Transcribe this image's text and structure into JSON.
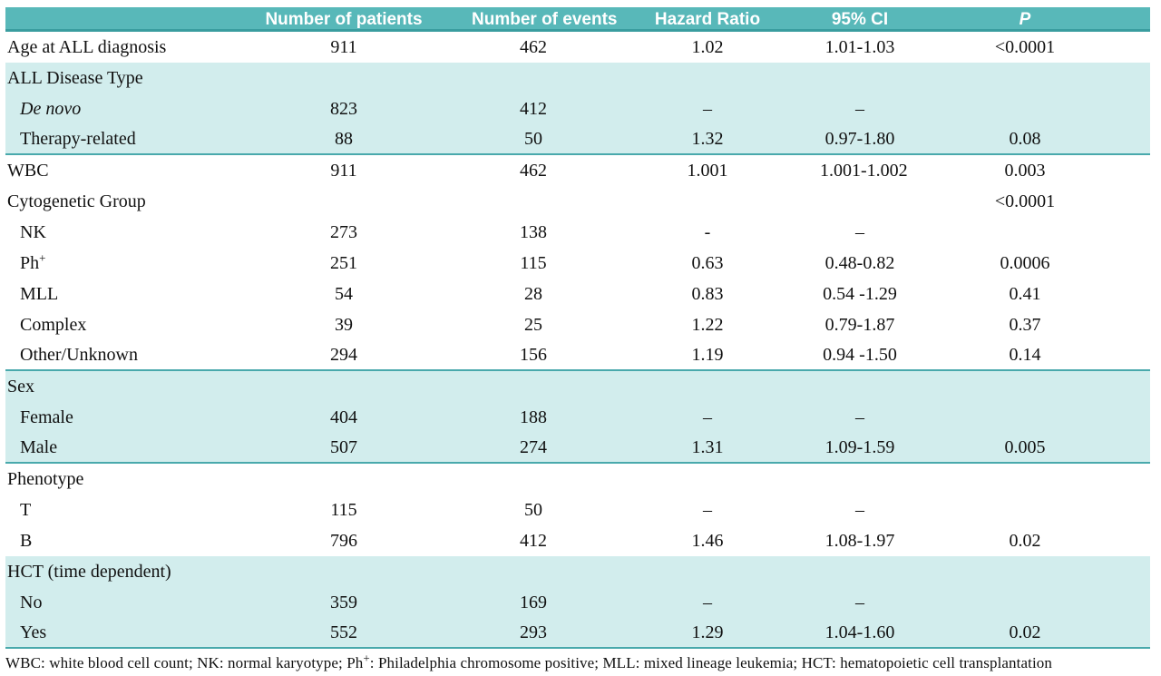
{
  "colors": {
    "header_bg": "#58b8b9",
    "header_edge": "#3a9d9f",
    "header_text": "#ffffff",
    "section_bg": "#d2eded",
    "divider": "#49a9ac",
    "text": "#111111"
  },
  "table": {
    "columns": [
      "",
      "Number of patients",
      "Number of events",
      "Hazard Ratio",
      "95% CI",
      "P"
    ],
    "rows": [
      {
        "label": "Age at ALL diagnosis",
        "indent": 0,
        "italic": false,
        "bg": "white",
        "divider": false,
        "patients": "911",
        "events": "462",
        "hr": "1.02",
        "ci": "1.01-1.03",
        "p": "<0.0001"
      },
      {
        "label": "ALL Disease Type",
        "indent": 0,
        "italic": false,
        "bg": "teal",
        "divider": false,
        "patients": "",
        "events": "",
        "hr": "",
        "ci": "",
        "p": ""
      },
      {
        "label": "De novo",
        "indent": 1,
        "italic": true,
        "bg": "teal",
        "divider": false,
        "patients": "823",
        "events": "412",
        "hr": "–",
        "ci": "–",
        "p": ""
      },
      {
        "label": "Therapy-related",
        "indent": 1,
        "italic": false,
        "bg": "teal",
        "divider": true,
        "patients": "88",
        "events": "50",
        "hr": "1.32",
        "ci": "0.97-1.80",
        "p": "0.08"
      },
      {
        "label": "WBC",
        "indent": 0,
        "italic": false,
        "bg": "white",
        "divider": false,
        "patients": "911",
        "events": "462",
        "hr": "1.001",
        "ci": "1.001-1.002",
        "p": "0.003"
      },
      {
        "label": "Cytogenetic Group",
        "indent": 0,
        "italic": false,
        "bg": "white",
        "divider": false,
        "patients": "",
        "events": "",
        "hr": "",
        "ci": "",
        "p": "<0.0001"
      },
      {
        "label": "NK",
        "indent": 1,
        "italic": false,
        "bg": "white",
        "divider": false,
        "patients": "273",
        "events": "138",
        "hr": "-",
        "ci": "–",
        "p": ""
      },
      {
        "label": "Ph",
        "label_sup": "+",
        "indent": 1,
        "italic": false,
        "bg": "white",
        "divider": false,
        "patients": "251",
        "events": "115",
        "hr": "0.63",
        "ci": "0.48-0.82",
        "p": "0.0006"
      },
      {
        "label": "MLL",
        "indent": 1,
        "italic": false,
        "bg": "white",
        "divider": false,
        "patients": "54",
        "events": "28",
        "hr": "0.83",
        "ci": "0.54 -1.29",
        "p": "0.41"
      },
      {
        "label": "Complex",
        "indent": 1,
        "italic": false,
        "bg": "white",
        "divider": false,
        "patients": "39",
        "events": "25",
        "hr": "1.22",
        "ci": "0.79-1.87",
        "p": "0.37"
      },
      {
        "label": "Other/Unknown",
        "indent": 1,
        "italic": false,
        "bg": "white",
        "divider": true,
        "patients": "294",
        "events": "156",
        "hr": "1.19",
        "ci": "0.94 -1.50",
        "p": "0.14"
      },
      {
        "label": "Sex",
        "indent": 0,
        "italic": false,
        "bg": "teal",
        "divider": false,
        "patients": "",
        "events": "",
        "hr": "",
        "ci": "",
        "p": ""
      },
      {
        "label": "Female",
        "indent": 1,
        "italic": false,
        "bg": "teal",
        "divider": false,
        "patients": "404",
        "events": "188",
        "hr": "–",
        "ci": "–",
        "p": ""
      },
      {
        "label": "Male",
        "indent": 1,
        "italic": false,
        "bg": "teal",
        "divider": true,
        "patients": "507",
        "events": "274",
        "hr": "1.31",
        "ci": "1.09-1.59",
        "p": "0.005"
      },
      {
        "label": "Phenotype",
        "indent": 0,
        "italic": false,
        "bg": "white",
        "divider": false,
        "patients": "",
        "events": "",
        "hr": "",
        "ci": "",
        "p": ""
      },
      {
        "label": "T",
        "indent": 1,
        "italic": false,
        "bg": "white",
        "divider": false,
        "patients": "115",
        "events": "50",
        "hr": "–",
        "ci": "–",
        "p": ""
      },
      {
        "label": "B",
        "indent": 1,
        "italic": false,
        "bg": "white",
        "divider": false,
        "patients": "796",
        "events": "412",
        "hr": "1.46",
        "ci": "1.08-1.97",
        "p": "0.02"
      },
      {
        "label": "HCT (time dependent)",
        "indent": 0,
        "italic": false,
        "bg": "teal",
        "divider": false,
        "patients": "",
        "events": "",
        "hr": "",
        "ci": "",
        "p": ""
      },
      {
        "label": "No",
        "indent": 1,
        "italic": false,
        "bg": "teal",
        "divider": false,
        "patients": "359",
        "events": "169",
        "hr": "–",
        "ci": "–",
        "p": ""
      },
      {
        "label": "Yes",
        "indent": 1,
        "italic": false,
        "bg": "teal",
        "divider": true,
        "patients": "552",
        "events": "293",
        "hr": "1.29",
        "ci": "1.04-1.60",
        "p": "0.02"
      }
    ],
    "footnote_parts": [
      "WBC: white blood cell count; NK: normal karyotype; Ph",
      "+",
      ": Philadelphia chromosome positive; MLL: mixed lineage leukemia; HCT: hematopoietic cell transplantation"
    ]
  }
}
